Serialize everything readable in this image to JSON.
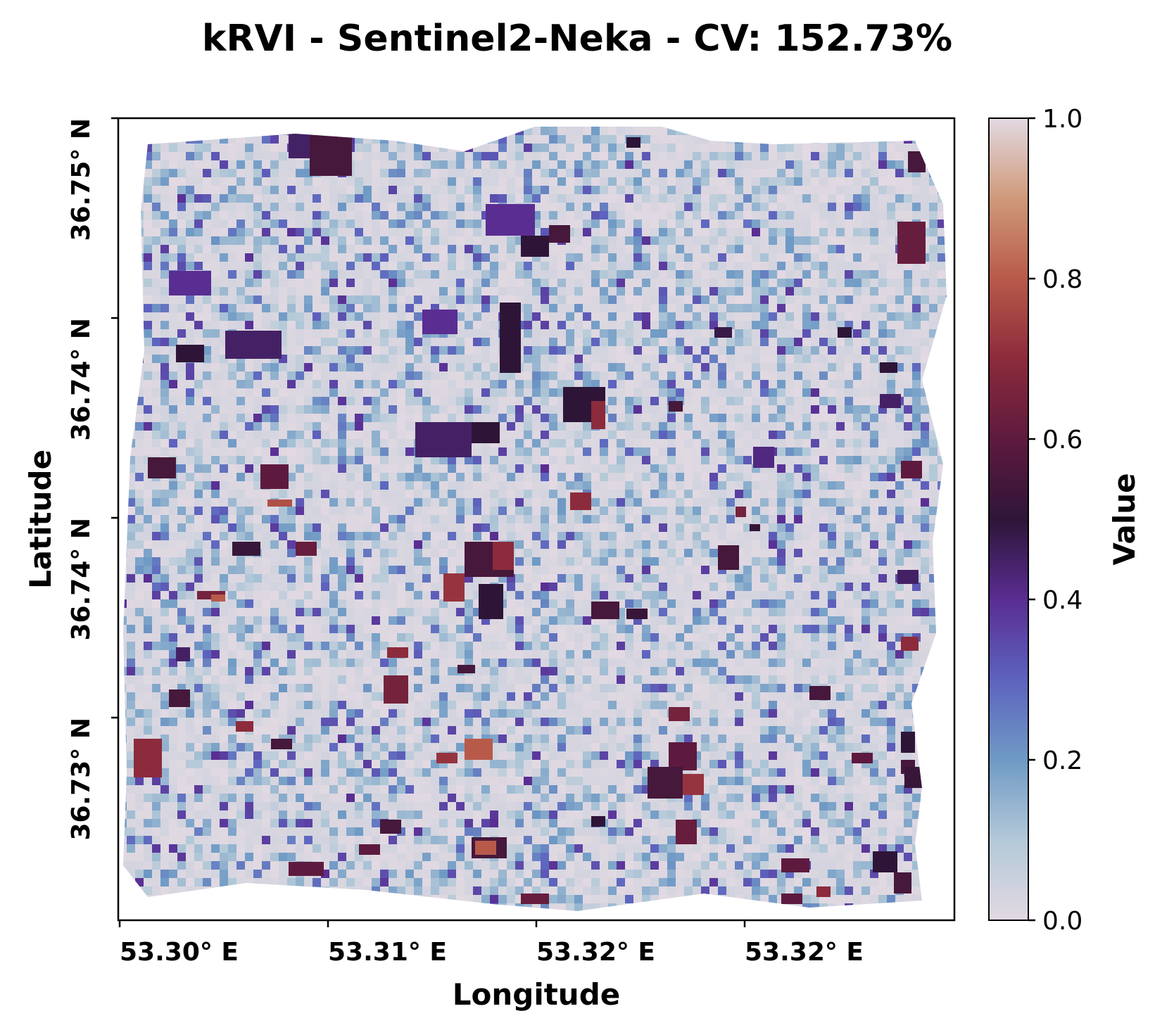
{
  "chart_data": {
    "type": "heatmap",
    "title": "kRVI - Sentinel2-Neka - CV: 152.73%",
    "xlabel": "Longitude",
    "ylabel": "Latitude",
    "x_ticks": [
      "53.30° E",
      "53.31° E",
      "53.32° E",
      "53.32° E"
    ],
    "y_ticks": [
      "36.75° N",
      "36.74° N",
      "36.74° N",
      "36.73° N"
    ],
    "colorbar": {
      "label": "Value",
      "range": [
        0.0,
        1.0
      ],
      "ticks": [
        "0.0",
        "0.2",
        "0.4",
        "0.6",
        "0.8",
        "1.0"
      ],
      "colormap": "twilight (first half)",
      "stops": [
        "#e2d9e2",
        "#b3c9d8",
        "#6f9ac5",
        "#5d63be",
        "#5a2d92",
        "#2e1538",
        "#5e1a3e",
        "#8c2b3c",
        "#b85a4a",
        "#cf9a7a",
        "#e2d9e2"
      ]
    },
    "field_summary": {
      "background_value": "~0.0-0.1 (mostly low values)",
      "notable_high_patches": "scattered dark purple / maroon / orange rectangular field parcels (values 0.4-0.9)"
    }
  }
}
